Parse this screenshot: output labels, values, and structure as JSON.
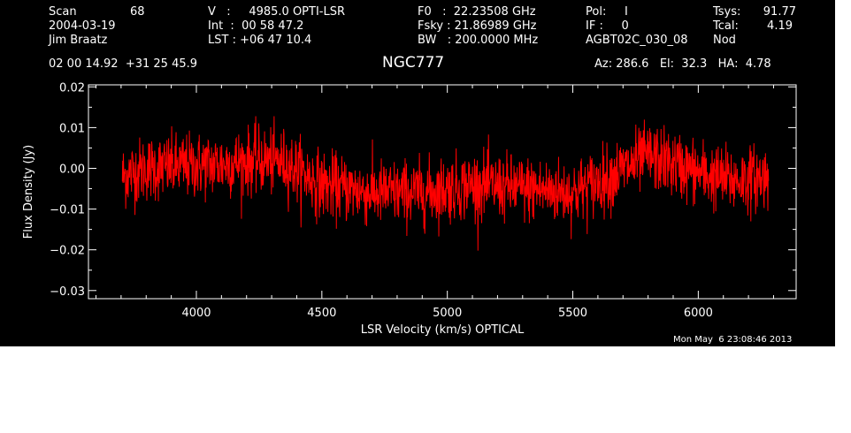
{
  "header": {
    "col1": {
      "scan_label": "Scan",
      "scan_value": "68",
      "date": "2004-03-19",
      "observer": "Jim Braatz"
    },
    "col2": {
      "v_line": "V   :     4985.0 OPTI-LSR",
      "int_line": "Int  :  00 58 47.2",
      "lst_line": "LST : +06 47 10.4"
    },
    "col3": {
      "f0_line": "F0   :  22.23508 GHz",
      "fsky_line": "Fsky : 21.86989 GHz",
      "bw_line": "BW   : 200.0000 MHz"
    },
    "col4": {
      "pol_line": "Pol:     I",
      "if_line": "IF :     0",
      "project": "AGBT02C_030_08"
    },
    "col5": {
      "tsys_label": "Tsys:",
      "tsys_value": "91.77",
      "tcal_label": "Tcal:",
      "tcal_value": "4.19",
      "mode": "Nod"
    },
    "coords": "02 00 14.92  +31 25 45.9",
    "source": "NGC777",
    "pointing": "Az: 286.6   El:  32.3   HA:  4.78"
  },
  "timestamp": "Mon May  6 23:08:46 2013",
  "colors": {
    "background": "#000000",
    "foreground": "#ffffff",
    "trace": "#ff0000"
  },
  "chart_data": {
    "type": "line",
    "xlabel": "LSR Velocity (km/s) OPTICAL",
    "ylabel": "Flux Density (Jy)",
    "xlim": [
      3570,
      6390
    ],
    "ylim": [
      -0.032,
      0.0205
    ],
    "x_ticks": [
      4000,
      4500,
      5000,
      5500,
      6000
    ],
    "x_tick_labels": [
      "4000",
      "4500",
      "5000",
      "5500",
      "6000"
    ],
    "y_ticks": [
      -0.03,
      -0.02,
      -0.01,
      0.0,
      0.01,
      0.02
    ],
    "y_tick_labels": [
      "−0.03",
      "−0.02",
      "−0.01",
      "0.00",
      "0.01",
      "0.02"
    ],
    "series": [
      {
        "x_start": 3705,
        "x_end": 6280,
        "noise_rms": 0.004,
        "baseline_x": [
          3705,
          3800,
          3950,
          4100,
          4250,
          4350,
          4500,
          4700,
          4900,
          5100,
          5300,
          5500,
          5650,
          5800,
          5900,
          6050,
          6150,
          6280
        ],
        "baseline_y": [
          -0.002,
          0.0,
          0.0005,
          0.001,
          0.002,
          0.0015,
          -0.004,
          -0.006,
          -0.006,
          -0.004,
          -0.005,
          -0.006,
          -0.002,
          0.003,
          0.001,
          -0.002,
          -0.003,
          -0.002
        ]
      }
    ]
  }
}
